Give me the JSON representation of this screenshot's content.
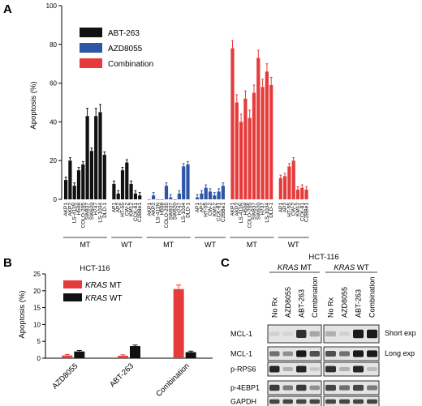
{
  "colors": {
    "abt": "#111111",
    "azd": "#2f56a6",
    "combo": "#e53b3b",
    "band": "#1a1a1a"
  },
  "panel_labels": {
    "a": "A",
    "b": "B",
    "c": "C"
  },
  "chart_data": [
    {
      "type": "bar",
      "panel": "A",
      "ylabel": "Apoptosis (%)",
      "ylim": [
        0,
        100
      ],
      "yticks": [
        0,
        20,
        40,
        60,
        80,
        100
      ],
      "legend": [
        "ABT-263",
        "AZD8055",
        "Combination"
      ],
      "groups": [
        {
          "label": "MT",
          "series": "ABT-263",
          "categories": [
            "AKP1",
            "AKP2",
            "LS-411N",
            "H508",
            "COLO-205",
            "SW837",
            "SW620",
            "H747",
            "LS-1034",
            "DLD-1"
          ],
          "values": [
            10,
            20,
            7,
            15,
            18,
            43,
            25,
            43,
            45,
            23
          ]
        },
        {
          "label": "WT",
          "series": "ABT-263",
          "categories": [
            "AP1",
            "AP2",
            "HT-55",
            "CW-2",
            "KM12",
            "CCK-81",
            "C2BBe1"
          ],
          "values": [
            8,
            3,
            15,
            19,
            8,
            3,
            2
          ]
        },
        {
          "label": "MT",
          "series": "AZD8055",
          "categories": [
            "AKP1",
            "AKP2",
            "LS-411N",
            "H508",
            "COLO-205",
            "SW837",
            "SW620",
            "H747",
            "LS-1034",
            "DLD-1"
          ],
          "values": [
            0,
            2,
            0,
            0,
            7,
            1,
            0,
            3,
            17,
            18
          ]
        },
        {
          "label": "WT",
          "series": "AZD8055",
          "categories": [
            "AP1",
            "AP2",
            "HT-55",
            "CW-2",
            "KM12",
            "CCK-81",
            "C2BBe1"
          ],
          "values": [
            1,
            3,
            6,
            4,
            2,
            4,
            7
          ]
        },
        {
          "label": "MT",
          "series": "Combination",
          "categories": [
            "AKP1",
            "AKP2",
            "LS-411N",
            "H508",
            "COLO-205",
            "SW837",
            "SW620",
            "H747",
            "LS-1034",
            "DLD-1"
          ],
          "values": [
            78,
            50,
            40,
            52,
            42,
            55,
            73,
            58,
            66,
            59
          ]
        },
        {
          "label": "WT",
          "series": "Combination",
          "categories": [
            "AP1",
            "AP2",
            "HT-55",
            "CW-2",
            "KM12",
            "CCK-81",
            "C2BBe1"
          ],
          "values": [
            11,
            12,
            17,
            20,
            5,
            6,
            5
          ]
        }
      ]
    },
    {
      "type": "bar",
      "panel": "B",
      "title": "HCT-116",
      "ylabel": "Apoptosis (%)",
      "ylim": [
        0,
        25
      ],
      "yticks": [
        0,
        5,
        10,
        15,
        20,
        25
      ],
      "categories": [
        "AZD8055",
        "ABT-263",
        "Combination"
      ],
      "series": [
        {
          "name": "KRAS MT",
          "name_italic": "KRAS",
          "name_rest": " MT",
          "values": [
            0.8,
            0.7,
            20.5
          ]
        },
        {
          "name": "KRAS WT",
          "name_italic": "KRAS",
          "name_rest": " WT",
          "values": [
            2.0,
            3.6,
            1.8
          ]
        }
      ]
    }
  ],
  "blot": {
    "cell_line": "HCT-116",
    "groups": [
      {
        "italic": "KRAS",
        "rest": " MT"
      },
      {
        "italic": "KRAS",
        "rest": " WT"
      }
    ],
    "lanes": [
      "No Rx",
      "AZD8055",
      "ABT-263",
      "Combination"
    ],
    "rows": [
      "MCL-1",
      "MCL-1",
      "p-RPS6",
      "p-4EBP1",
      "GAPDH"
    ],
    "exposures": [
      "Short exp",
      "Long exp"
    ],
    "intensities": [
      [
        [
          0.1,
          0.08,
          0.85,
          0.3
        ],
        [
          0.25,
          0.1,
          0.95,
          0.95
        ]
      ],
      [
        [
          0.55,
          0.4,
          0.95,
          0.7
        ],
        [
          0.7,
          0.55,
          0.95,
          0.95
        ]
      ],
      [
        [
          0.9,
          0.25,
          0.9,
          0.15
        ],
        [
          0.85,
          0.25,
          0.9,
          0.2
        ]
      ],
      [
        [
          0.8,
          0.5,
          0.8,
          0.4
        ],
        [
          0.75,
          0.55,
          0.75,
          0.5
        ]
      ],
      [
        [
          0.75,
          0.75,
          0.75,
          0.75
        ],
        [
          0.75,
          0.75,
          0.75,
          0.75
        ]
      ]
    ]
  }
}
